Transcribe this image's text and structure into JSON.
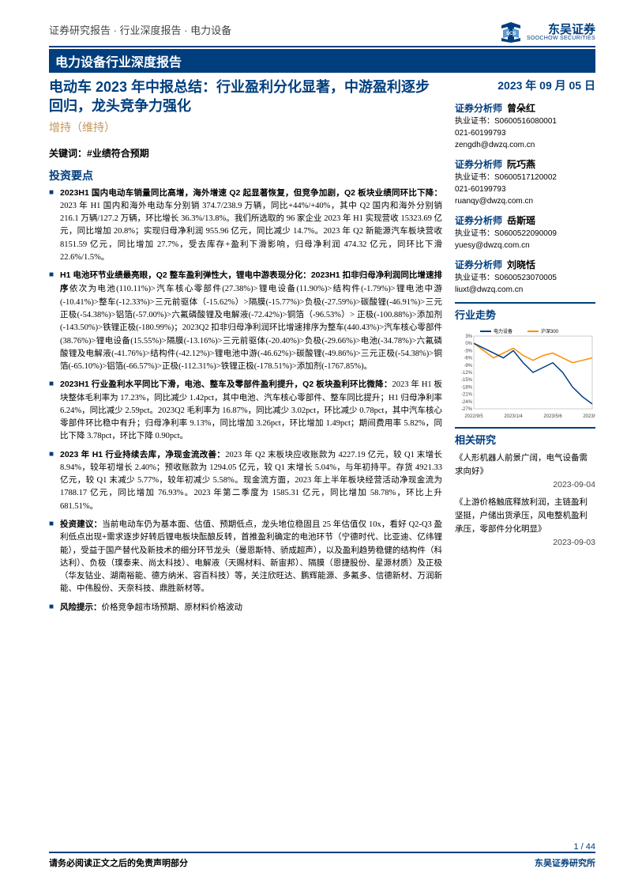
{
  "header": {
    "breadcrumb": "证券研究报告 · 行业深度报告 · 电力设备",
    "logo_text": "东吴证券",
    "logo_sub": "SOOCHOW SECURITIES",
    "blue_bar": "电力设备行业深度报告"
  },
  "main": {
    "title": "电动车 2023 年中报总结：行业盈利分化显著，中游盈利逐步回归，龙头竞争力强化",
    "rating": "增持（维持）",
    "kw_label": "关键词：",
    "kw_value": "#业绩符合预期",
    "sec_head": "投资要点",
    "bullets": [
      {
        "bold": "2023H1 国内电动车销量同比高增，海外增速 Q2 起显著恢复，但竞争加剧，Q2 板块业绩同环比下降：",
        "text": "2023 年 H1 国内和海外电动车分别销 374.7/238.9 万辆，同比+44%/+40%，其中 Q2 国内和海外分别销 216.1 万辆/127.2 万辆，环比增长 36.3%/13.8%。我们所选取的 96 家企业 2023 年 H1 实现营收 15323.69 亿元，同比增加 20.8%；实现归母净利润 955.96 亿元，同比减少 14.7%。2023 年 Q2 新能源汽车板块营收 8151.59 亿元，同比增加 27.7%，受去库存+盈利下滑影响，归母净利润 474.32 亿元，同环比下滑 22.6%/1.5%。"
      },
      {
        "bold": "H1 电池环节业绩最亮眼，Q2 整车盈利弹性大，锂电中游表现分化：2023H1 扣非归母净利润同比增速排序",
        "text": "依次为电池(110.11%)>汽车核心零部件(27.38%)>锂电设备(11.90%)>结构件(-1.79%)>锂电池中游(-10.41%)>整车(-12.33%)>三元前驱体（-15.62%）>隔膜(-15.77%)>负极(-27.59%)>碳酸锂(-46.91%)>三元正极(-54.38%)>铝箔(-57.00%)>六氟磷酸锂及电解液(-72.42%)>铜箔（-96.53%）> 正极(-100.88%)>添加剂(-143.50%)>铁锂正极(-180.99%)；2023Q2 扣非归母净利润环比增速排序为整车(440.43%)>汽车核心零部件(38.76%)>锂电设备(15.55%)>隔膜(-13.16%)>三元前驱体(-20.40%)>负极(-29.66%)>电池(-34.78%)>六氟磷酸锂及电解液(-41.76%)>结构件(-42.12%)>锂电池中游(-46.62%)>碳酸锂(-49.86%)>三元正极(-54.38%)>铜箔(-65.10%)>铝箔(-66.57%)>正极(-112.31%)>铁锂正极(-178.51%)>添加剂(-1767.85%)。"
      },
      {
        "bold": "2023H1 行业盈利水平同比下滑，电池、整车及零部件盈利提升，Q2 板块盈利环比微降：",
        "text": "2023 年 H1 板块整体毛利率为 17.23%，同比减少 1.42pct，其中电池、汽车核心零部件、整车同比提升；H1 归母净利率 6.24%，同比减少 2.59pct。2023Q2 毛利率为 16.87%，同比减少 3.02pct，环比减少 0.78pct，其中汽车核心零部件环比稳中有升；归母净利率 9.13%，同比增加 3.26pct，环比增加 1.49pct；期间费用率 5.82%，同比下降 3.78pct，环比下降 0.90pct。"
      },
      {
        "bold": "2023 年 H1 行业持续去库，净现金流改善：",
        "text": "2023 年 Q2 末板块应收账款为 4227.19 亿元，较 Q1 末增长 8.94%，较年初增长 2.40%；预收账款为 1294.05 亿元，较 Q1 末增长 5.04%，与年初持平。存货 4921.33 亿元，较 Q1 末减少 5.77%，较年初减少 5.58%。现金流方面，2023 年上半年板块经营活动净现金流为 1788.17 亿元，同比增加 76.93%。2023 年第二季度为 1585.31 亿元，同比增加 58.78%，环比上升 681.51%。"
      },
      {
        "bold": "投资建议：",
        "text": "当前电动车仍为基本面、估值、预期低点，龙头地位稳固且 25 年估值仅 10x，看好 Q2-Q3 盈利低点出现+需求逐步好转后锂电板块酝酿反转，首推盈利确定的电池环节（宁德时代、比亚迪、亿纬锂能），受益于国产替代及新技术的细分环节龙头（曼恩斯特、骄成超声），以及盈利趋势稳健的结构件（科达利）、负极（璞泰来、尚太科技）、电解液（天赐材料、新宙邦）、隔膜（恩捷股份、星源材质）及正极（华友钴业、湖南裕能、德方纳米、容百科技）等，关注欣旺达、鹏辉能源、多氟多、信德新材、万润新能、中伟股份、天奈科技、鼎胜新材等。"
      },
      {
        "bold": "风险提示：",
        "text": "价格竞争超市场预期、原材料价格波动"
      }
    ]
  },
  "side": {
    "date": "2023 年 09 月 05 日",
    "analysts": [
      {
        "role": "证券分析师",
        "name": "曾朵红",
        "cert": "执业证书：S0600516080001",
        "phone": "021-60199793",
        "email": "zengdh@dwzq.com.cn"
      },
      {
        "role": "证券分析师",
        "name": "阮巧燕",
        "cert": "执业证书：S0600517120002",
        "phone": "021-60199793",
        "email": "ruanqy@dwzq.com.cn"
      },
      {
        "role": "证券分析师",
        "name": "岳斯瑶",
        "cert": "执业证书：S0600522090009",
        "phone": "",
        "email": "yuesy@dwzq.com.cn"
      },
      {
        "role": "证券分析师",
        "name": "刘晓恬",
        "cert": "执业证书：S0600523070005",
        "phone": "",
        "email": "liuxt@dwzq.com.cn"
      }
    ],
    "trend_head": "行业走势",
    "chart": {
      "type": "line",
      "series_names": [
        "电力设备",
        "沪深300"
      ],
      "colors": [
        "#003e7e",
        "#ff8c00"
      ],
      "x_labels": [
        "2022/9/5",
        "2023/1/4",
        "2023/5/6",
        "2023/9/4"
      ],
      "y_ticks": [
        "3%",
        "0%",
        "-3%",
        "-6%",
        "-9%",
        "-12%",
        "-15%",
        "-18%",
        "-21%",
        "-24%",
        "-27%"
      ],
      "ylim": [
        -27,
        3
      ],
      "series1": [
        0,
        -2,
        -4,
        -6,
        -3,
        -8,
        -12,
        -10,
        -8,
        -12,
        -18,
        -22,
        -25
      ],
      "series2": [
        0,
        -3,
        -6,
        -4,
        -2,
        -5,
        -7,
        -5,
        -4,
        -6,
        -8,
        -7,
        -6
      ],
      "background": "#ffffff",
      "grid_color": "#e0e0e0",
      "font_size": 6
    },
    "related_head": "相关研究",
    "related": [
      {
        "title": "《人形机器人前景广阔，电气设备需求向好》",
        "date": "2023-09-04"
      },
      {
        "title": "《上游价格触底释放利润，主链盈利坚挺，户储出货承压，风电整机盈利承压，零部件分化明显》",
        "date": "2023-09-03"
      }
    ]
  },
  "footer": {
    "page": "1 / 44",
    "left": "请务必阅读正文之后的免责声明部分",
    "right": "东吴证券研究所"
  }
}
